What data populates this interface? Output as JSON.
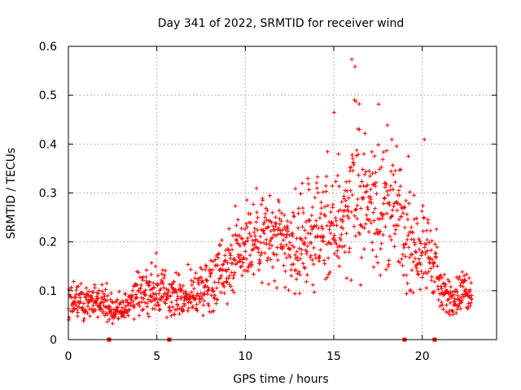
{
  "chart_data": {
    "type": "scatter",
    "title": "Day 341 of 2022, SRMTID for receiver wind",
    "xlabel": "GPS time / hours",
    "ylabel": "SRMTID / TECUs",
    "xlim": [
      0,
      24.2
    ],
    "ylim": [
      0,
      0.6
    ],
    "x_ticks": [
      0,
      5,
      10,
      15,
      20
    ],
    "y_ticks": [
      0,
      0.1,
      0.2,
      0.3,
      0.4,
      0.5,
      0.6
    ],
    "x_tick_labels": [
      "0",
      "5",
      "10",
      "15",
      "20"
    ],
    "y_tick_labels": [
      "0",
      "0.1",
      "0.2",
      "0.3",
      "0.4",
      "0.5",
      "0.6"
    ],
    "grid": true,
    "marker": "+",
    "color": "#ff0000",
    "gap_markers_x": [
      2.3,
      5.7,
      19.0,
      20.7
    ],
    "series": [
      {
        "name": "SRMTID",
        "points_note": "~1380 samples, 1-min spacing, trend values (hour, TECU)",
        "trend_x": [
          0,
          1,
          2,
          2.4,
          3,
          4,
          5,
          6,
          7,
          8,
          9,
          10,
          11,
          12,
          13,
          14,
          15,
          16,
          17,
          18,
          18.6,
          19,
          20,
          20.8,
          21,
          22,
          22.8
        ],
        "trend_y": [
          0.08,
          0.085,
          0.075,
          0.06,
          0.06,
          0.1,
          0.1,
          0.085,
          0.09,
          0.12,
          0.16,
          0.2,
          0.22,
          0.19,
          0.19,
          0.22,
          0.22,
          0.28,
          0.28,
          0.27,
          0.26,
          0.2,
          0.19,
          0.16,
          0.09,
          0.09,
          0.11
        ]
      }
    ]
  }
}
